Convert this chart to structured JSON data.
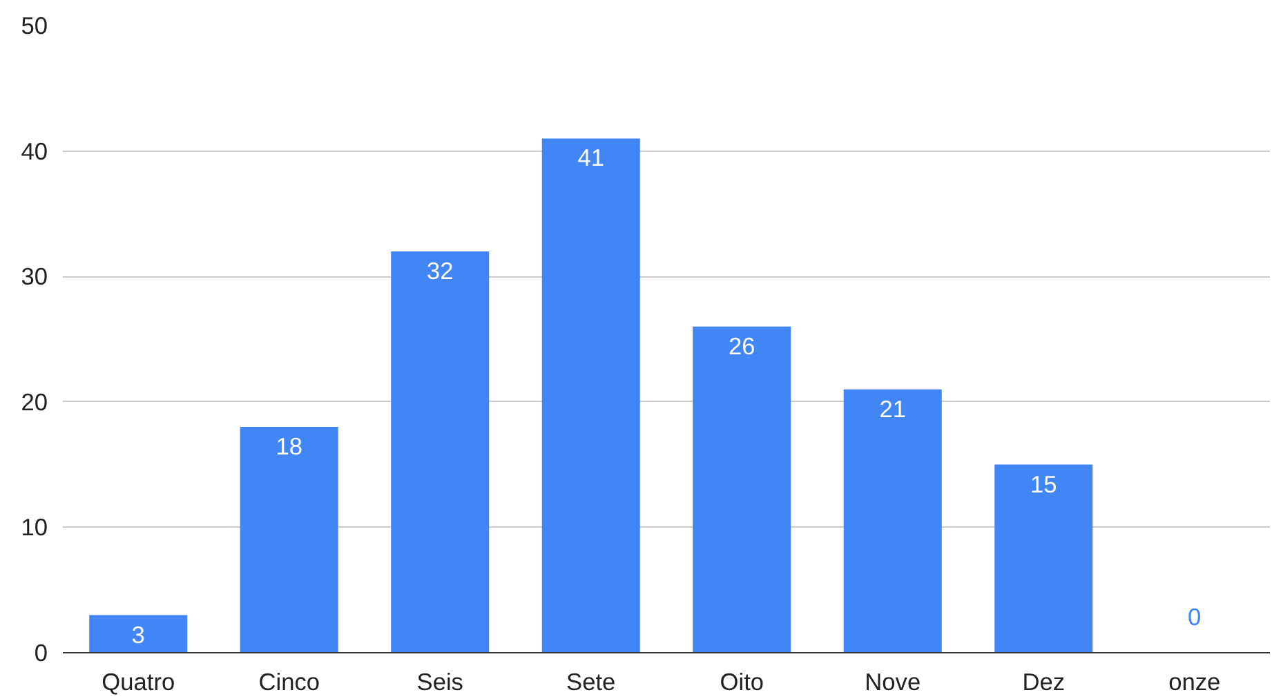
{
  "chart_data": {
    "type": "bar",
    "categories": [
      "Quatro",
      "Cinco",
      "Seis",
      "Sete",
      "Oito",
      "Nove",
      "Dez",
      "onze"
    ],
    "values": [
      3,
      18,
      32,
      41,
      26,
      21,
      15,
      0
    ],
    "color": "#4285f4",
    "ylim": [
      0,
      50
    ],
    "yticks": [
      0,
      10,
      20,
      30,
      40,
      50
    ],
    "grid": "y",
    "data_labels": true
  }
}
